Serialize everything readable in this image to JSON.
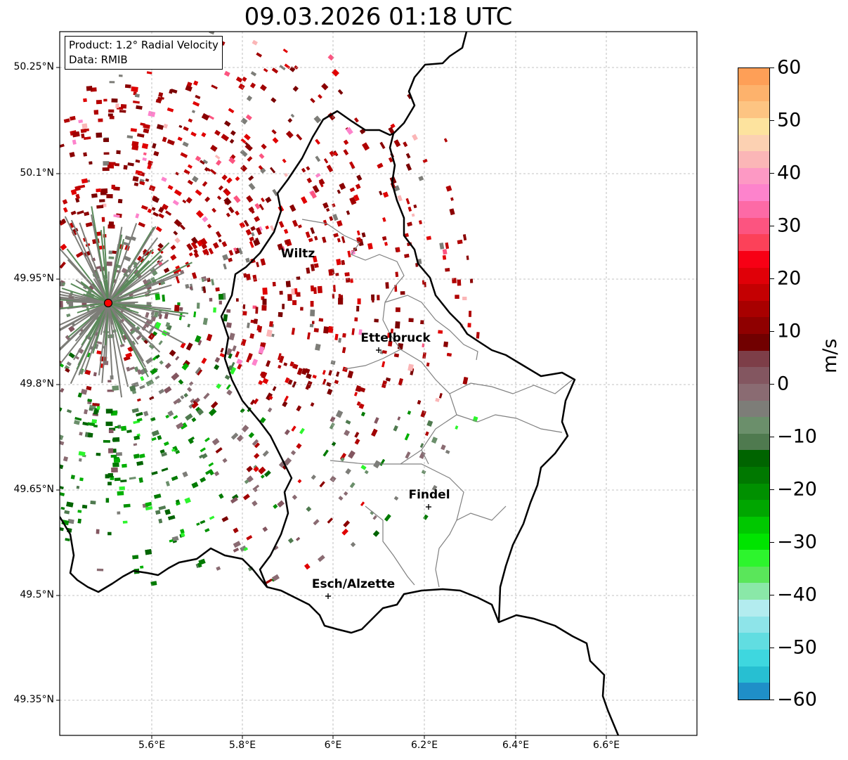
{
  "title": "09.03.2026 01:18 UTC",
  "info": {
    "product": "Product: 1.2° Radial Velocity",
    "source": "Data: RMIB"
  },
  "lat_ticks": [
    "50.25°N",
    "50.1°N",
    "49.95°N",
    "49.8°N",
    "49.65°N",
    "49.5°N",
    "49.35°N"
  ],
  "lon_ticks": [
    "5.6°E",
    "5.8°E",
    "6°E",
    "6.2°E",
    "6.4°E",
    "6.6°E"
  ],
  "cities": [
    {
      "name": "Wiltz"
    },
    {
      "name": "Ettelbruck"
    },
    {
      "name": "Findel"
    },
    {
      "name": "Esch/Alzette"
    }
  ],
  "colorbar": {
    "unit": "m/s",
    "ticks": [
      "60",
      "50",
      "40",
      "30",
      "20",
      "10",
      "0",
      "−10",
      "−20",
      "−30",
      "−40",
      "−50",
      "−60"
    ],
    "colors": [
      "#fe9f57",
      "#fdb26c",
      "#fdc482",
      "#fde39e",
      "#fcd1b2",
      "#fbb6b7",
      "#fd99c4",
      "#fd83cc",
      "#fd6aa6",
      "#fc5480",
      "#fc4159",
      "#f70015",
      "#e00008",
      "#c40002",
      "#a80000",
      "#8f0000",
      "#710000",
      "#7d3e48",
      "#835660",
      "#8a6b72",
      "#7d7d78",
      "#6b8f6b",
      "#4f7a4f",
      "#006400",
      "#007800",
      "#009000",
      "#00a600",
      "#00c800",
      "#00e400",
      "#2df52d",
      "#5ae65a",
      "#8ae8a8",
      "#b3ecef",
      "#8ee4e9",
      "#61dde1",
      "#3ed7df",
      "#27bfd2",
      "#1f8fc8"
    ]
  }
}
